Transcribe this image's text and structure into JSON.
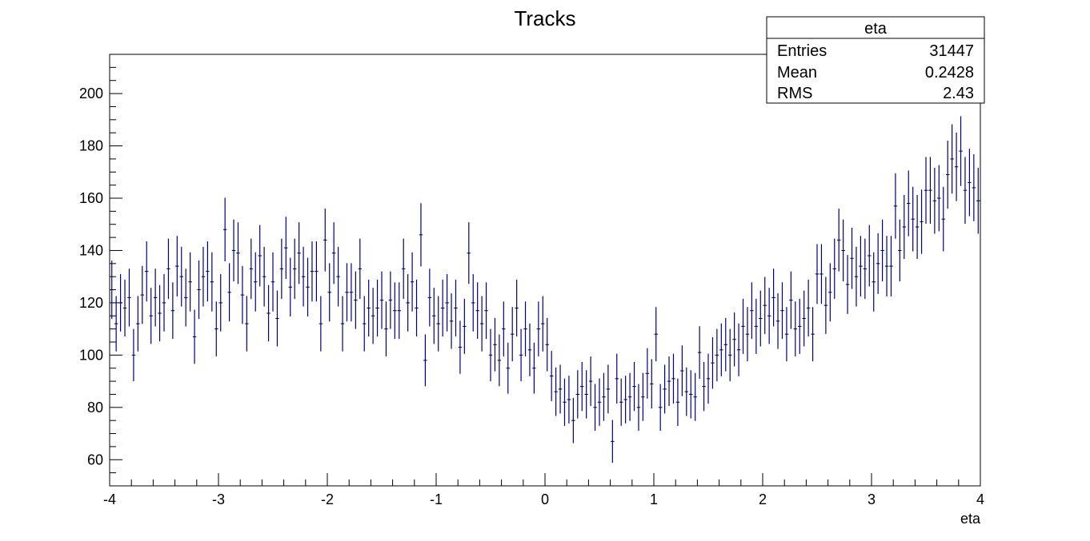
{
  "chart_data": {
    "type": "histogram",
    "title": "Tracks",
    "xlabel": "eta",
    "ylabel": "",
    "xlim": [
      -4,
      4
    ],
    "ylim": [
      50,
      215
    ],
    "x_ticks": [
      -4,
      -3,
      -2,
      -1,
      0,
      1,
      2,
      3,
      4
    ],
    "x_tick_labels": [
      "-4",
      "-3",
      "-2",
      "-1",
      "0",
      "1",
      "2",
      "3",
      "4"
    ],
    "y_ticks": [
      60,
      80,
      100,
      120,
      140,
      160,
      180,
      200
    ],
    "y_tick_labels": [
      "60",
      "80",
      "100",
      "120",
      "140",
      "160",
      "180",
      "200"
    ],
    "grid": false,
    "marker_color": "#000080",
    "stats_box": {
      "title": "eta",
      "rows": [
        {
          "label": "Entries",
          "value": "31447"
        },
        {
          "label": "Mean",
          "value": "0.2428"
        },
        {
          "label": "RMS",
          "value": "2.43"
        }
      ]
    },
    "bins": {
      "x_start": -4,
      "x_end": 4,
      "count": 200,
      "values": [
        125,
        112,
        120,
        118,
        122,
        100,
        112,
        123,
        132,
        115,
        122,
        116,
        120,
        133,
        117,
        134,
        130,
        122,
        128,
        107,
        125,
        130,
        132,
        128,
        110,
        120,
        148,
        124,
        140,
        139,
        123,
        112,
        133,
        128,
        138,
        130,
        116,
        128,
        114,
        133,
        141,
        126,
        133,
        139,
        130,
        126,
        132,
        132,
        112,
        144,
        124,
        139,
        130,
        112,
        124,
        124,
        121,
        133,
        112,
        118,
        115,
        118,
        121,
        110,
        121,
        117,
        117,
        133,
        120,
        128,
        118,
        146,
        98,
        122,
        115,
        112,
        118,
        120,
        113,
        118,
        103,
        111,
        139,
        120,
        117,
        112,
        117,
        100,
        104,
        98,
        110,
        95,
        108,
        118,
        100,
        110,
        102,
        95,
        110,
        112,
        104,
        92,
        86,
        87,
        82,
        83,
        75,
        85,
        88,
        85,
        90,
        80,
        82,
        84,
        87,
        67,
        91,
        82,
        83,
        84,
        88,
        80,
        84,
        93,
        89,
        108,
        80,
        87,
        90,
        91,
        82,
        94,
        86,
        85,
        84,
        101,
        88,
        91,
        97,
        100,
        102,
        104,
        100,
        106,
        102,
        111,
        108,
        117,
        111,
        114,
        119,
        115,
        122,
        113,
        117,
        108,
        121,
        110,
        111,
        114,
        118,
        108,
        131,
        131,
        119,
        124,
        133,
        144,
        140,
        127,
        137,
        130,
        134,
        133,
        138,
        128,
        135,
        140,
        134,
        134,
        157,
        140,
        149,
        158,
        152,
        149,
        151,
        163,
        163,
        159,
        160,
        152,
        169,
        175,
        172,
        178,
        163,
        166,
        164,
        159
      ]
    }
  }
}
